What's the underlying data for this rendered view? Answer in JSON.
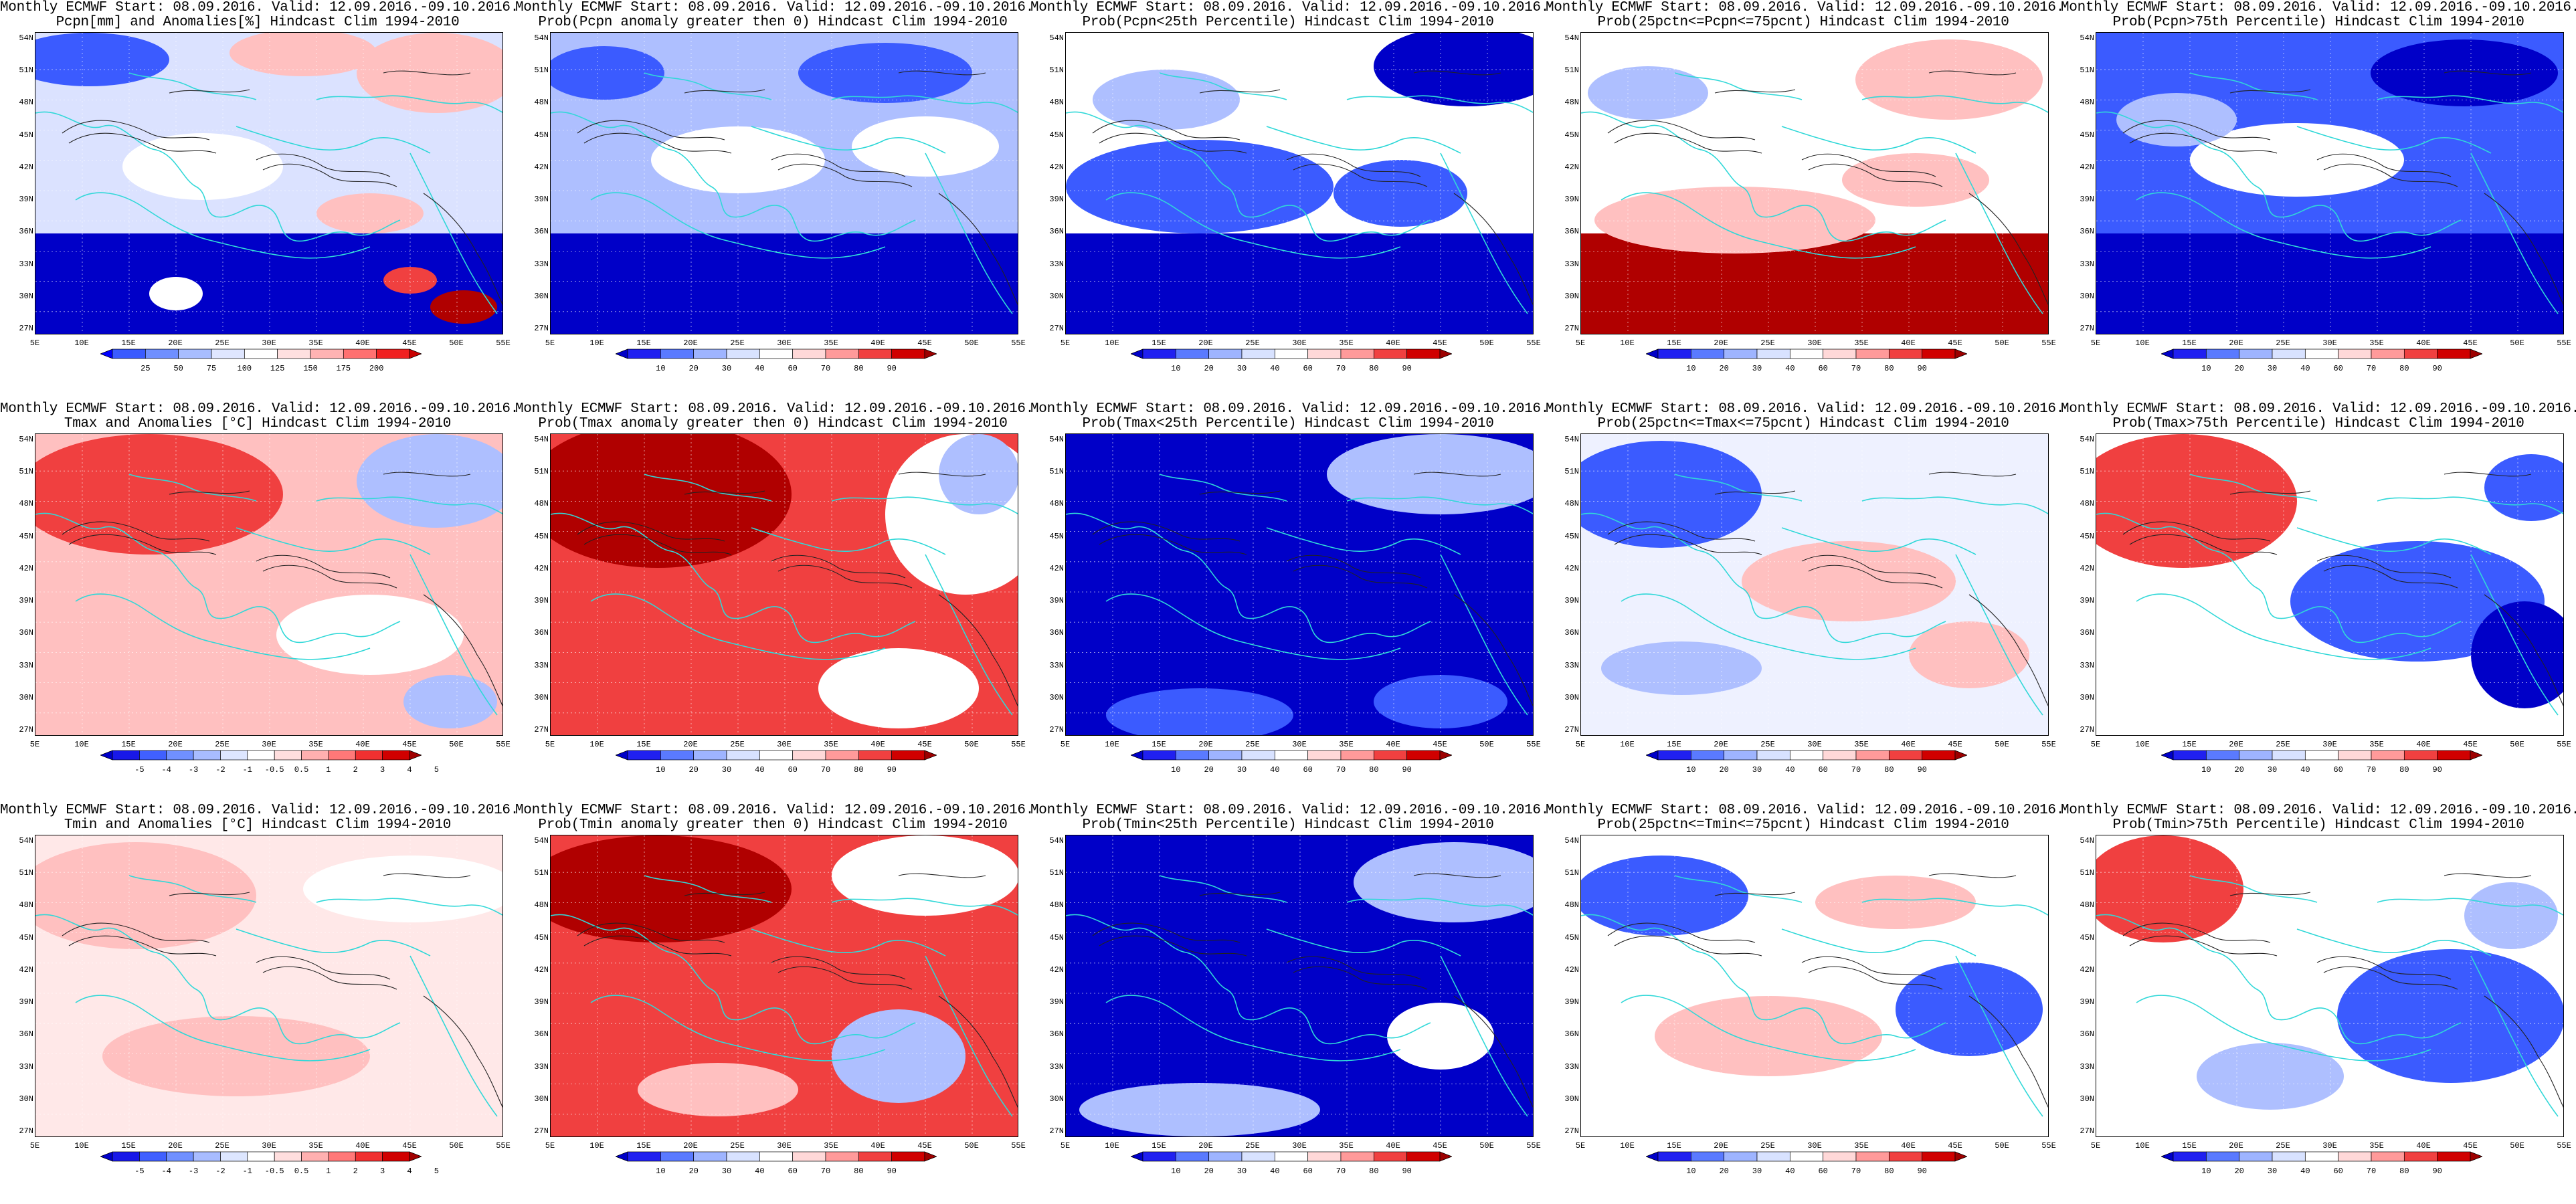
{
  "rows": [
    [
      {
        "l1": "Monthly ECMWF Start: 08.09.2016. Valid: 12.09.2016.-09.10.2016.",
        "l2": "Pcpn[mm] and Anomalies[%] Hindcast Clim 1994-2010",
        "field": "pcpn_anom",
        "cbar": "anom_pcpn"
      },
      {
        "l1": "Monthly ECMWF Start: 08.09.2016. Valid: 12.09.2016.-09.10.2016.",
        "l2": "Prob(Pcpn anomaly greater then 0) Hindcast Clim 1994-2010",
        "field": "pcpn_p0",
        "cbar": "prob"
      },
      {
        "l1": "Monthly ECMWF Start: 08.09.2016. Valid: 12.09.2016.-09.10.2016.",
        "l2": "Prob(Pcpn<25th Percentile) Hindcast Clim 1994-2010",
        "field": "pcpn_p25",
        "cbar": "prob"
      },
      {
        "l1": "Monthly ECMWF Start: 08.09.2016. Valid: 12.09.2016.-09.10.2016.",
        "l2": "Prob(25pctn<=Pcpn<=75pcnt) Hindcast Clim 1994-2010",
        "field": "pcpn_mid",
        "cbar": "prob"
      },
      {
        "l1": "Monthly ECMWF Start: 08.09.2016. Valid: 12.09.2016.-09.10.2016.",
        "l2": "Prob(Pcpn>75th Percentile) Hindcast Clim 1994-2010",
        "field": "pcpn_p75",
        "cbar": "prob"
      }
    ],
    [
      {
        "l1": "Monthly ECMWF Start: 08.09.2016. Valid: 12.09.2016.-09.10.2016.",
        "l2": "Tmax and Anomalies [°C] Hindcast Clim 1994-2010",
        "field": "tmax_anom",
        "cbar": "anom_t"
      },
      {
        "l1": "Monthly ECMWF Start: 08.09.2016. Valid: 12.09.2016.-09.10.2016.",
        "l2": "Prob(Tmax anomaly greater then 0) Hindcast Clim 1994-2010",
        "field": "tmax_p0",
        "cbar": "prob"
      },
      {
        "l1": "Monthly ECMWF Start: 08.09.2016. Valid: 12.09.2016.-09.10.2016.",
        "l2": "Prob(Tmax<25th Percentile) Hindcast Clim 1994-2010",
        "field": "tmax_p25",
        "cbar": "prob"
      },
      {
        "l1": "Monthly ECMWF Start: 08.09.2016. Valid: 12.09.2016.-09.10.2016.",
        "l2": "Prob(25pctn<=Tmax<=75pcnt) Hindcast Clim 1994-2010",
        "field": "tmax_mid",
        "cbar": "prob"
      },
      {
        "l1": "Monthly ECMWF Start: 08.09.2016. Valid: 12.09.2016.-09.10.2016.",
        "l2": "Prob(Tmax>75th Percentile) Hindcast Clim 1994-2010",
        "field": "tmax_p75",
        "cbar": "prob"
      }
    ],
    [
      {
        "l1": "Monthly ECMWF Start: 08.09.2016. Valid: 12.09.2016.-09.10.2016.",
        "l2": "Tmin and Anomalies [°C] Hindcast Clim 1994-2010",
        "field": "tmin_anom",
        "cbar": "anom_t"
      },
      {
        "l1": "Monthly ECMWF Start: 08.09.2016. Valid: 12.09.2016.-09.10.2016.",
        "l2": "Prob(Tmin anomaly greater then 0) Hindcast Clim 1994-2010",
        "field": "tmin_p0",
        "cbar": "prob"
      },
      {
        "l1": "Monthly ECMWF Start: 08.09.2016. Valid: 12.09.2016.-09.10.2016.",
        "l2": "Prob(Tmin<25th Percentile) Hindcast Clim 1994-2010",
        "field": "tmin_p25",
        "cbar": "prob"
      },
      {
        "l1": "Monthly ECMWF Start: 08.09.2016. Valid: 12.09.2016.-09.10.2016.",
        "l2": "Prob(25pctn<=Tmin<=75pcnt) Hindcast Clim 1994-2010",
        "field": "tmin_mid",
        "cbar": "prob"
      },
      {
        "l1": "Monthly ECMWF Start: 08.09.2016. Valid: 12.09.2016.-09.10.2016.",
        "l2": "Prob(Tmin>75th Percentile) Hindcast Clim 1994-2010",
        "field": "tmin_p75",
        "cbar": "prob"
      }
    ]
  ],
  "lat_labels": [
    "54N",
    "51N",
    "48N",
    "45N",
    "42N",
    "39N",
    "36N",
    "33N",
    "30N",
    "27N"
  ],
  "lon_labels": [
    "5E",
    "10E",
    "15E",
    "20E",
    "25E",
    "30E",
    "35E",
    "40E",
    "45E",
    "50E",
    "55E"
  ],
  "colorbars": {
    "anom_pcpn": {
      "ticks": [
        "25",
        "50",
        "75",
        "100",
        "125",
        "150",
        "175",
        "200"
      ],
      "colors": [
        "#0000ff",
        "#3a5bff",
        "#6f8fff",
        "#a8bdff",
        "#dfe6ff",
        "#ffffff",
        "#ffe0e0",
        "#ffb3b3",
        "#ff7070",
        "#f02020",
        "#c80000"
      ]
    },
    "prob": {
      "ticks": [
        "10",
        "20",
        "30",
        "40",
        "60",
        "70",
        "80",
        "90"
      ],
      "colors": [
        "#0000c8",
        "#2020f0",
        "#5a7aff",
        "#9eb4ff",
        "#d8e2ff",
        "#ffffff",
        "#ffd8d8",
        "#ff9a9a",
        "#f04040",
        "#d00000",
        "#9c0000"
      ]
    },
    "anom_t": {
      "ticks": [
        "-5",
        "-4",
        "-3",
        "-2",
        "-1",
        "-0.5",
        "0.5",
        "1",
        "2",
        "3",
        "4",
        "5"
      ],
      "colors": [
        "#0000c8",
        "#1818e8",
        "#4060ff",
        "#7090ff",
        "#a8bcff",
        "#dde6ff",
        "#ffffff",
        "#ffdede",
        "#ffb0b0",
        "#ff7878",
        "#f03030",
        "#d00000",
        "#a00000"
      ]
    }
  },
  "palette": {
    "deep_blue": "#0000c8",
    "blue": "#3b5bff",
    "light_blue": "#aebfff",
    "white": "#ffffff",
    "light_red": "#ffc0c0",
    "red": "#f04040",
    "deep_red": "#b00000",
    "coast": "#30d8d8",
    "contour": "#222222"
  }
}
